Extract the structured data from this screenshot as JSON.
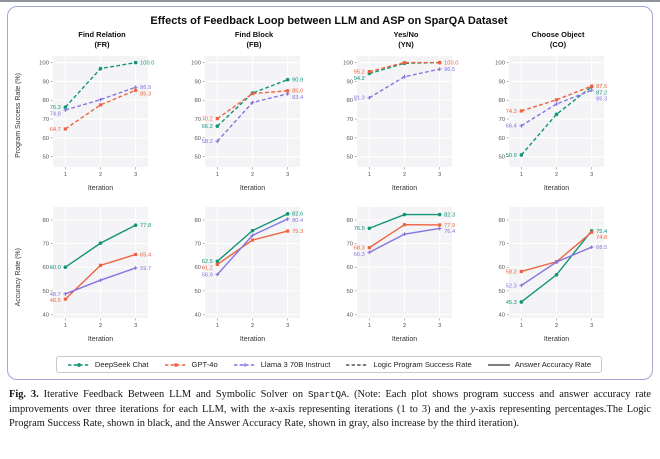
{
  "figure": {
    "title": "Effects of Feedback Loop between LLM and ASP on SparQA Dataset"
  },
  "columns": [
    {
      "line1": "Find Relation",
      "line2": "(FR)"
    },
    {
      "line1": "Find Block",
      "line2": "(FB)"
    },
    {
      "line1": "Yes/No",
      "line2": "(YN)"
    },
    {
      "line1": "Choose Object",
      "line2": "(CO)"
    }
  ],
  "rows": [
    {
      "label": "Program Success Rate (%)"
    },
    {
      "label": "Accuracy Rate (%)"
    }
  ],
  "colors": {
    "deepseek": "#129478",
    "gpt4o": "#ee6340",
    "llama": "#8673dd",
    "gray": "#555555"
  },
  "legend": {
    "items": [
      {
        "label": "DeepSeek Chat",
        "color": "deepseek",
        "marker": "circle",
        "dash": true,
        "icon": "deepseek-line-swatch"
      },
      {
        "label": "GPT-4o",
        "color": "gpt4o",
        "marker": "square",
        "dash": true,
        "icon": "gpt4o-line-swatch"
      },
      {
        "label": "Llama 3 70B Instruct",
        "color": "llama",
        "marker": "plus",
        "dash": true,
        "icon": "llama-line-swatch"
      },
      {
        "label": "Logic Program Success Rate",
        "color": "gray",
        "marker": "none",
        "dash": true,
        "icon": "dashed-line-swatch"
      },
      {
        "label": "Answer Accuracy Rate",
        "color": "gray",
        "marker": "none",
        "dash": false,
        "icon": "solid-line-swatch"
      }
    ]
  },
  "chart_data": [
    {
      "type": "line",
      "task": "Find Relation (FR)",
      "metric": "Program Success Rate (%)",
      "xlabel": "Iteration",
      "x": [
        1,
        2,
        3
      ],
      "ylim": [
        44.5,
        103.5
      ],
      "yticks": [
        50,
        60,
        70,
        80,
        90,
        100
      ],
      "grid": "on",
      "dashed": true,
      "series": [
        {
          "name": "DeepSeek Chat",
          "color": "deepseek",
          "marker": "circle",
          "values": [
            76.3,
            96.8,
            100.0
          ],
          "label_start": "76.3",
          "label_end": "100.0"
        },
        {
          "name": "GPT-4o",
          "color": "gpt4o",
          "marker": "square",
          "values": [
            64.7,
            77.5,
            85.3
          ],
          "label_start": "64.7",
          "label_end": "85.3"
        },
        {
          "name": "Llama 3 70B Instruct",
          "color": "llama",
          "marker": "plus",
          "values": [
            74.8,
            80.3,
            86.9
          ],
          "label_start": "74.8",
          "label_end": "86.9"
        }
      ]
    },
    {
      "type": "line",
      "task": "Find Block (FB)",
      "metric": "Program Success Rate (%)",
      "xlabel": "Iteration",
      "x": [
        1,
        2,
        3
      ],
      "ylim": [
        44.5,
        103.5
      ],
      "yticks": [
        50,
        60,
        70,
        80,
        90,
        100
      ],
      "grid": "on",
      "dashed": true,
      "series": [
        {
          "name": "DeepSeek Chat",
          "color": "deepseek",
          "marker": "circle",
          "values": [
            66.2,
            83.8,
            90.9
          ],
          "label_start": "66.2",
          "label_end": "90.9"
        },
        {
          "name": "GPT-4o",
          "color": "gpt4o",
          "marker": "square",
          "values": [
            70.2,
            83.5,
            85.0
          ],
          "label_start": "70.2",
          "label_end": "85.0"
        },
        {
          "name": "Llama 3 70B Instruct",
          "color": "llama",
          "marker": "plus",
          "values": [
            58.2,
            78.8,
            83.4
          ],
          "label_start": "58.2",
          "label_end": "83.4"
        }
      ]
    },
    {
      "type": "line",
      "task": "Yes/No (YN)",
      "metric": "Program Success Rate (%)",
      "xlabel": "Iteration",
      "x": [
        1,
        2,
        3
      ],
      "ylim": [
        44.5,
        103.5
      ],
      "yticks": [
        50,
        60,
        70,
        80,
        90,
        100
      ],
      "grid": "on",
      "dashed": true,
      "series": [
        {
          "name": "DeepSeek Chat",
          "color": "deepseek",
          "marker": "circle",
          "values": [
            94.2,
            99.6,
            100.0
          ],
          "label_start": "94.2",
          "label_end": ""
        },
        {
          "name": "GPT-4o",
          "color": "gpt4o",
          "marker": "square",
          "values": [
            95.2,
            100.0,
            100.0
          ],
          "label_start": "95.2",
          "label_end": "100.0"
        },
        {
          "name": "Llama 3 70B Instruct",
          "color": "llama",
          "marker": "plus",
          "values": [
            81.3,
            92.5,
            96.5
          ],
          "label_start": "81.3",
          "label_end": "96.5"
        }
      ]
    },
    {
      "type": "line",
      "task": "Choose Object (CO)",
      "metric": "Program Success Rate (%)",
      "xlabel": "Iteration",
      "x": [
        1,
        2,
        3
      ],
      "ylim": [
        44.5,
        103.5
      ],
      "yticks": [
        50,
        60,
        70,
        80,
        90,
        100
      ],
      "grid": "on",
      "dashed": true,
      "series": [
        {
          "name": "DeepSeek Chat",
          "color": "deepseek",
          "marker": "circle",
          "values": [
            50.9,
            72.5,
            87.2
          ],
          "label_start": "50.9",
          "label_end": "87.2"
        },
        {
          "name": "GPT-4o",
          "color": "gpt4o",
          "marker": "square",
          "values": [
            74.3,
            80.2,
            87.5
          ],
          "label_start": "74.3",
          "label_end": "87.5"
        },
        {
          "name": "Llama 3 70B Instruct",
          "color": "llama",
          "marker": "plus",
          "values": [
            66.4,
            78.0,
            85.3
          ],
          "label_start": "66.4",
          "label_end": "85.3"
        }
      ]
    },
    {
      "type": "line",
      "task": "Find Relation (FR)",
      "metric": "Accuracy Rate (%)",
      "xlabel": "Iteration",
      "x": [
        1,
        2,
        3
      ],
      "ylim": [
        38.5,
        85.5
      ],
      "yticks": [
        40,
        50,
        60,
        70,
        80
      ],
      "grid": "on",
      "dashed": false,
      "series": [
        {
          "name": "DeepSeek Chat",
          "color": "deepseek",
          "marker": "circle",
          "values": [
            60.0,
            70.2,
            77.8
          ],
          "label_start": "60.0",
          "label_end": "77.8"
        },
        {
          "name": "GPT-4o",
          "color": "gpt4o",
          "marker": "square",
          "values": [
            46.5,
            60.8,
            65.4
          ],
          "label_start": "46.5",
          "label_end": "65.4"
        },
        {
          "name": "Llama 3 70B Instruct",
          "color": "llama",
          "marker": "plus",
          "values": [
            48.7,
            54.5,
            59.7
          ],
          "label_start": "48.7",
          "label_end": "59.7"
        }
      ]
    },
    {
      "type": "line",
      "task": "Find Block (FB)",
      "metric": "Accuracy Rate (%)",
      "xlabel": "Iteration",
      "x": [
        1,
        2,
        3
      ],
      "ylim": [
        38.5,
        85.5
      ],
      "yticks": [
        40,
        50,
        60,
        70,
        80
      ],
      "grid": "on",
      "dashed": false,
      "series": [
        {
          "name": "DeepSeek Chat",
          "color": "deepseek",
          "marker": "circle",
          "values": [
            62.5,
            75.5,
            82.6
          ],
          "label_start": "62.5",
          "label_end": "82.6"
        },
        {
          "name": "GPT-4o",
          "color": "gpt4o",
          "marker": "square",
          "values": [
            61.2,
            71.5,
            75.3
          ],
          "label_start": "61.2",
          "label_end": "75.3"
        },
        {
          "name": "Llama 3 70B Instruct",
          "color": "llama",
          "marker": "plus",
          "values": [
            56.9,
            73.5,
            80.4
          ],
          "label_start": "56.9",
          "label_end": "80.4"
        }
      ]
    },
    {
      "type": "line",
      "task": "Yes/No (YN)",
      "metric": "Accuracy Rate (%)",
      "xlabel": "Iteration",
      "x": [
        1,
        2,
        3
      ],
      "ylim": [
        38.5,
        85.5
      ],
      "yticks": [
        40,
        50,
        60,
        70,
        80
      ],
      "grid": "on",
      "dashed": false,
      "series": [
        {
          "name": "DeepSeek Chat",
          "color": "deepseek",
          "marker": "circle",
          "values": [
            76.5,
            82.3,
            82.3
          ],
          "label_start": "76.5",
          "label_end": "82.3"
        },
        {
          "name": "GPT-4o",
          "color": "gpt4o",
          "marker": "square",
          "values": [
            68.3,
            78.0,
            77.9
          ],
          "label_start": "68.3",
          "label_end": "77.9"
        },
        {
          "name": "Llama 3 70B Instruct",
          "color": "llama",
          "marker": "plus",
          "values": [
            66.3,
            74.0,
            76.4
          ],
          "label_start": "66.3",
          "label_end": "76.4"
        }
      ]
    },
    {
      "type": "line",
      "task": "Choose Object (CO)",
      "metric": "Accuracy Rate (%)",
      "xlabel": "Iteration",
      "x": [
        1,
        2,
        3
      ],
      "ylim": [
        38.5,
        85.5
      ],
      "yticks": [
        40,
        50,
        60,
        70,
        80
      ],
      "grid": "on",
      "dashed": false,
      "series": [
        {
          "name": "DeepSeek Chat",
          "color": "deepseek",
          "marker": "circle",
          "values": [
            45.3,
            56.8,
            75.4
          ],
          "label_start": "45.3",
          "label_end": "75.4"
        },
        {
          "name": "GPT-4o",
          "color": "gpt4o",
          "marker": "square",
          "values": [
            58.2,
            62.3,
            74.8
          ],
          "label_start": "58.2",
          "label_end": "74.8"
        },
        {
          "name": "Llama 3 70B Instruct",
          "color": "llama",
          "marker": "plus",
          "values": [
            52.3,
            62.2,
            68.5
          ],
          "label_start": "52.3",
          "label_end": "68.5"
        }
      ]
    }
  ],
  "caption": {
    "segments": [
      {
        "t": "Fig. 3.",
        "b": true
      },
      {
        "t": " Iterative Feedback Between LLM and Symbolic Solver on "
      },
      {
        "t": "SpartQA",
        "mono": true
      },
      {
        "t": ". (Note: Each plot shows program success and answer accuracy rate improvements over three iterations for each LLM, with the "
      },
      {
        "t": "x",
        "i": true
      },
      {
        "t": "-axis representing iterations (1 to 3) and the "
      },
      {
        "t": "y",
        "i": true
      },
      {
        "t": "-axis representing percentages.The Logic Program Success Rate, shown in black, and the Answer Accuracy Rate, shown in gray, also increase by the third iteration)."
      }
    ]
  }
}
